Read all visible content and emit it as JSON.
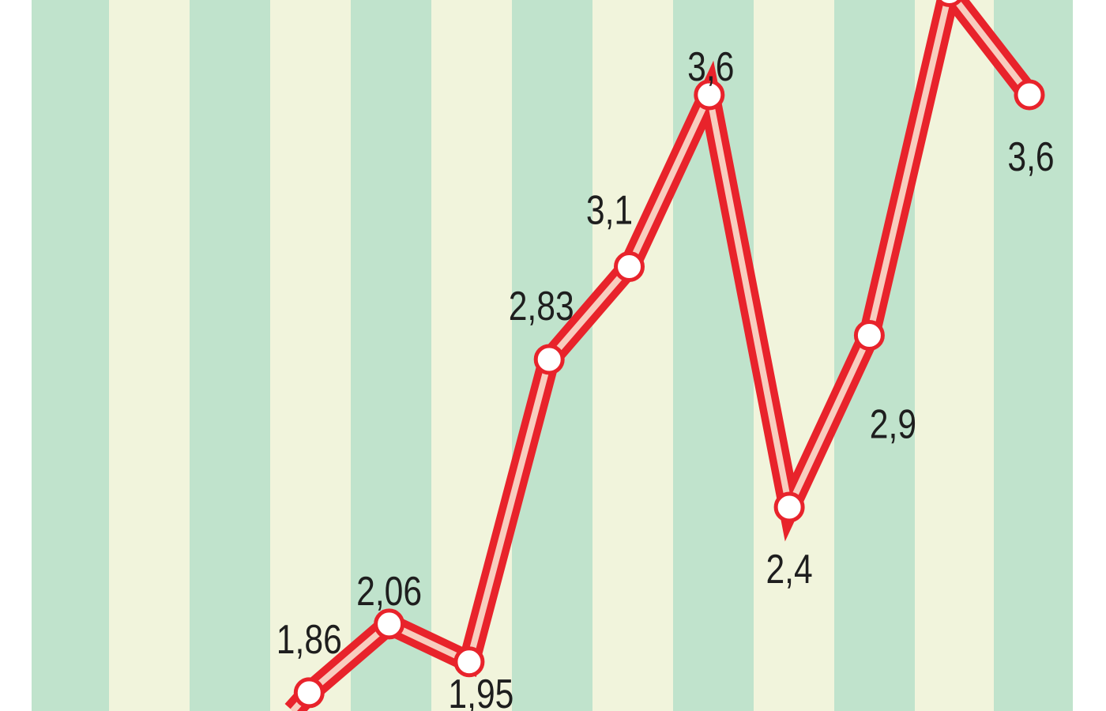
{
  "chart_data": {
    "type": "line",
    "title": "",
    "xlabel": "",
    "ylabel": "",
    "grid": false,
    "background": "alternating vertical stripes",
    "colors": {
      "stripe_a": "#c0e3cc",
      "stripe_b": "#f1f4dc",
      "line_outer": "#e8232b",
      "line_inner": "#f8cdbf",
      "marker_fill": "#ffffff"
    },
    "points": [
      {
        "value": 1.6,
        "label": null
      },
      {
        "value": 1.86,
        "label": "1,86"
      },
      {
        "value": 2.06,
        "label": "2,06"
      },
      {
        "value": 1.95,
        "label": "1,95"
      },
      {
        "value": 2.83,
        "label": "2,83"
      },
      {
        "value": 3.1,
        "label": "3,1"
      },
      {
        "value": 3.6,
        "label": "3,6"
      },
      {
        "value": 2.4,
        "label": "2,4"
      },
      {
        "value": 2.9,
        "label": "2,9"
      },
      {
        "value": 3.9,
        "label": null
      },
      {
        "value": 3.6,
        "label": "3,6"
      }
    ]
  }
}
